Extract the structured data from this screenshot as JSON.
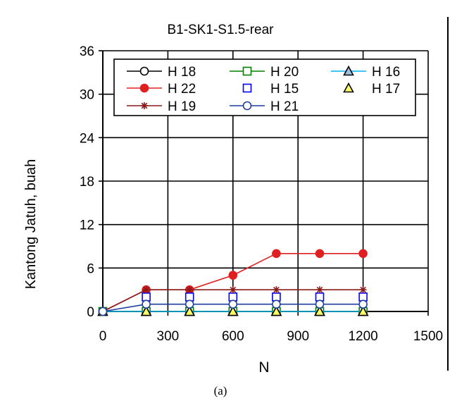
{
  "chart_data": {
    "type": "line",
    "title": "B1-SK1-S1.5-rear",
    "xlabel": "N",
    "ylabel": "Kantong Jatuh, buah",
    "caption": "(a)",
    "xlim": [
      0,
      1500
    ],
    "ylim": [
      0,
      36
    ],
    "x_ticks": [
      0,
      300,
      600,
      900,
      1200,
      1500
    ],
    "y_ticks": [
      0,
      6,
      12,
      18,
      24,
      30,
      36
    ],
    "x_tick_labels": [
      "0",
      "300",
      "600",
      "900",
      "1200",
      "1500"
    ],
    "y_tick_labels": [
      "0",
      "6",
      "12",
      "18",
      "24",
      "30",
      "36"
    ],
    "grid": true,
    "legend_position": "top",
    "series": [
      {
        "name": "H 18",
        "color": "#000000",
        "line": true,
        "marker": "circle",
        "marker_fill": "#ffffff",
        "x": [
          0,
          200,
          400,
          600,
          800,
          1000,
          1200
        ],
        "y": [
          0,
          0,
          0,
          0,
          0,
          0,
          0
        ]
      },
      {
        "name": "H 20",
        "color": "#008000",
        "line": true,
        "marker": "square",
        "marker_fill": "#ffffff",
        "x": [
          0,
          200,
          400,
          600,
          800,
          1000,
          1200
        ],
        "y": [
          0,
          0,
          0,
          0,
          0,
          0,
          0
        ]
      },
      {
        "name": "H 16",
        "color": "#00b0f0",
        "line": true,
        "marker": "triangle",
        "marker_fill": "#9bc2e6",
        "x": [
          0,
          200,
          400,
          600,
          800,
          1000,
          1200
        ],
        "y": [
          0,
          0,
          0,
          0,
          0,
          0,
          0
        ]
      },
      {
        "name": "H 22",
        "color": "#e02020",
        "line": true,
        "marker": "circle",
        "marker_fill": "#e02020",
        "x": [
          0,
          200,
          400,
          600,
          800,
          1000,
          1200
        ],
        "y": [
          0,
          3,
          3,
          5,
          8,
          8,
          8
        ]
      },
      {
        "name": "H 15",
        "color": "#0000ff",
        "line": false,
        "marker": "square",
        "marker_fill": "#ffffff",
        "x": [
          200,
          400,
          600,
          800,
          1000,
          1200
        ],
        "y": [
          2,
          2,
          2,
          2,
          2,
          2
        ]
      },
      {
        "name": "H 17",
        "color": "#000000",
        "line": false,
        "marker": "triangle",
        "marker_fill": "#ffff66",
        "x": [
          200,
          400,
          600,
          800,
          1000,
          1200
        ],
        "y": [
          0,
          0,
          0,
          0,
          0,
          0
        ]
      },
      {
        "name": "H 19",
        "color": "#8b1a1a",
        "line": true,
        "marker": "star",
        "marker_fill": "#8b1a1a",
        "x": [
          0,
          200,
          400,
          600,
          800,
          1000,
          1200
        ],
        "y": [
          0,
          3,
          3,
          3,
          3,
          3,
          3
        ]
      },
      {
        "name": "H 21",
        "color": "#1f3f9f",
        "line": true,
        "marker": "circle",
        "marker_fill": "#ffffff",
        "x": [
          0,
          200,
          400,
          600,
          800,
          1000,
          1200
        ],
        "y": [
          0,
          1,
          1,
          1,
          1,
          1,
          1
        ]
      }
    ]
  }
}
